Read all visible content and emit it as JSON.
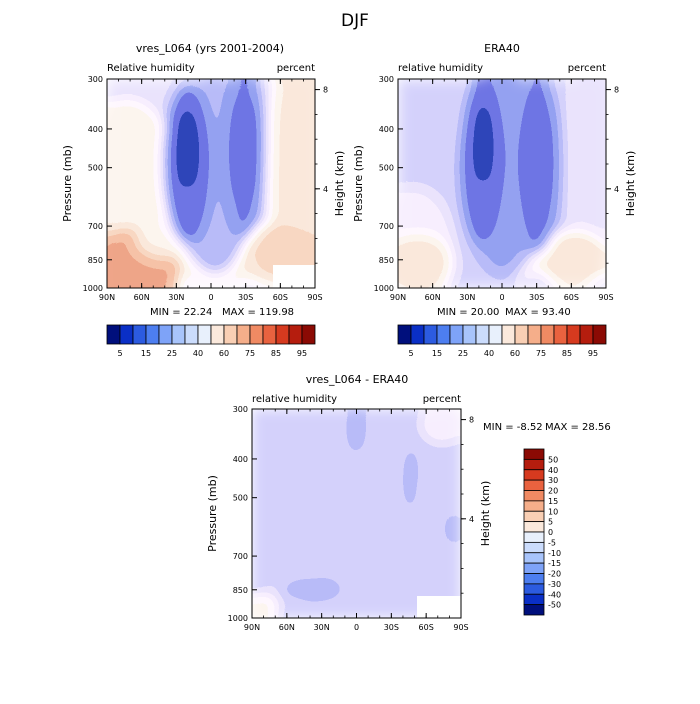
{
  "page_title": "DJF",
  "chart_data": [
    {
      "type": "heatmap",
      "id": "model",
      "title": "vres_L064 (yrs 2001-2004)",
      "left_label": "Relative humidity",
      "right_label": "percent",
      "ylabel": "Pressure (mb)",
      "ylabel_right": "Height (km)",
      "x_ticks": [
        "90N",
        "60N",
        "30N",
        "0",
        "30S",
        "60S",
        "90S"
      ],
      "y_ticks": [
        "300",
        "400",
        "500",
        "700",
        "850",
        "1000"
      ],
      "y_values": [
        300,
        400,
        500,
        700,
        850,
        1000
      ],
      "height_ticks": [
        "8",
        "4"
      ],
      "height_values_km": [
        8,
        4
      ],
      "min_text": "MIN =  22.24",
      "max_text": "MAX = 119.98",
      "min_value": 22.24,
      "max_value": 119.98,
      "colorbar_labels": [
        "5",
        "15",
        "25",
        "40",
        "60",
        "75",
        "85",
        "95"
      ],
      "colorbar_colors": [
        "#000f7c",
        "#0a2fc6",
        "#2c5be0",
        "#4d7ef0",
        "#7ea3f8",
        "#a8c4fb",
        "#cbdcfc",
        "#e8f0fc",
        "#fbe9dc",
        "#f9cfb4",
        "#f5ae8a",
        "#f08a63",
        "#e9623f",
        "#d63a1f",
        "#b51d0e",
        "#8b0a04"
      ]
    },
    {
      "type": "heatmap",
      "id": "era40",
      "title": "ERA40",
      "left_label": "relative humidity",
      "right_label": "percent",
      "ylabel": "Pressure (mb)",
      "ylabel_right": "Height (km)",
      "x_ticks": [
        "90N",
        "60N",
        "30N",
        "0",
        "30S",
        "60S",
        "90S"
      ],
      "y_ticks": [
        "300",
        "400",
        "500",
        "700",
        "850",
        "1000"
      ],
      "y_values": [
        300,
        400,
        500,
        700,
        850,
        1000
      ],
      "height_ticks": [
        "8",
        "4"
      ],
      "height_values_km": [
        8,
        4
      ],
      "min_text": "MIN =  20.00",
      "max_text": "MAX =  93.40",
      "min_value": 20.0,
      "max_value": 93.4,
      "colorbar_labels": [
        "5",
        "15",
        "25",
        "40",
        "60",
        "75",
        "85",
        "95"
      ],
      "colorbar_colors": [
        "#000f7c",
        "#0a2fc6",
        "#2c5be0",
        "#4d7ef0",
        "#7ea3f8",
        "#a8c4fb",
        "#cbdcfc",
        "#e8f0fc",
        "#fbe9dc",
        "#f9cfb4",
        "#f5ae8a",
        "#f08a63",
        "#e9623f",
        "#d63a1f",
        "#b51d0e",
        "#8b0a04"
      ]
    },
    {
      "type": "heatmap",
      "id": "diff",
      "title": "vres_L064 - ERA40",
      "left_label": "relative humidity",
      "right_label": "percent",
      "ylabel": "Pressure (mb)",
      "ylabel_right": "Height (km)",
      "x_ticks": [
        "90N",
        "60N",
        "30N",
        "0",
        "30S",
        "60S",
        "90S"
      ],
      "y_ticks": [
        "300",
        "400",
        "500",
        "700",
        "850",
        "1000"
      ],
      "y_values": [
        300,
        400,
        500,
        700,
        850,
        1000
      ],
      "height_ticks": [
        "8",
        "4"
      ],
      "height_values_km": [
        8,
        4
      ],
      "min_text": "MIN =  -8.52",
      "max_text": "MAX =  28.56",
      "min_value": -8.52,
      "max_value": 28.56,
      "colorbar_labels": [
        "50",
        "40",
        "30",
        "20",
        "15",
        "10",
        "5",
        "0",
        "-5",
        "-10",
        "-15",
        "-20",
        "-30",
        "-40",
        "-50"
      ],
      "colorbar_colors": [
        "#8b0a04",
        "#b51d0e",
        "#d63a1f",
        "#e9623f",
        "#f08a63",
        "#f5ae8a",
        "#f9cfb4",
        "#fbe9dc",
        "#e8f0fc",
        "#cbdcfc",
        "#a8c4fb",
        "#7ea3f8",
        "#4d7ef0",
        "#2c5be0",
        "#0a2fc6",
        "#000f7c"
      ]
    }
  ]
}
